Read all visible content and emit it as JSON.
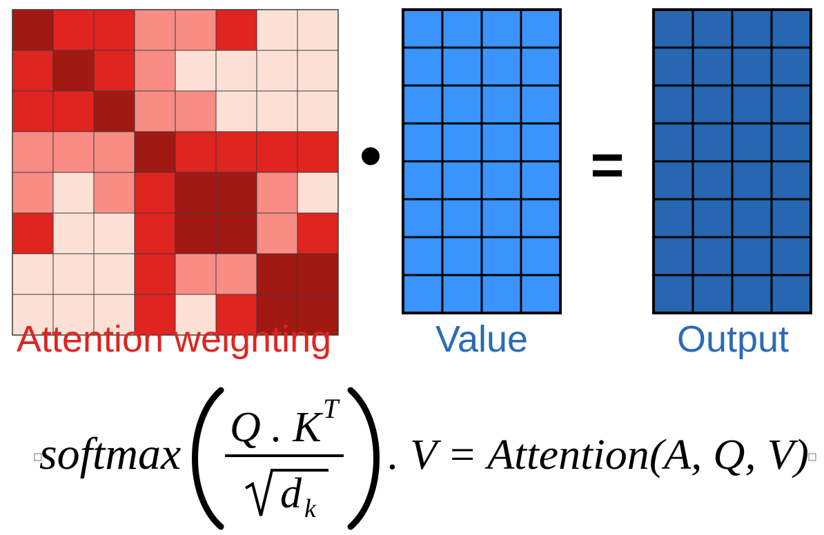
{
  "attention": {
    "label": "Attention weighting",
    "label_color": "#e02420",
    "levels": [
      [
        3,
        2,
        2,
        1,
        1,
        2,
        0,
        0
      ],
      [
        2,
        3,
        2,
        1,
        0,
        0,
        0,
        0
      ],
      [
        2,
        2,
        3,
        1,
        1,
        0,
        0,
        0
      ],
      [
        1,
        1,
        1,
        3,
        2,
        2,
        2,
        2
      ],
      [
        1,
        0,
        1,
        2,
        3,
        3,
        1,
        0
      ],
      [
        2,
        0,
        0,
        2,
        3,
        3,
        1,
        2
      ],
      [
        0,
        0,
        0,
        2,
        1,
        1,
        3,
        3
      ],
      [
        0,
        0,
        0,
        2,
        0,
        2,
        3,
        3
      ]
    ],
    "level_colors": [
      "#fce0d6",
      "#f98d86",
      "#e02420",
      "#a21914"
    ]
  },
  "operator_dot": "•",
  "value": {
    "label": "Value",
    "label_color": "#2a6bb6",
    "rows": 8,
    "cols": 4,
    "cell_color": "#3a94fc"
  },
  "operator_equals": "=",
  "output": {
    "label": "Output",
    "label_color": "#2a6bb6",
    "rows": 8,
    "cols": 4,
    "cell_color": "#2766b0"
  },
  "formula": {
    "softmax": "softmax",
    "numerator": "Q . K",
    "superscript": "T",
    "denominator_var": "d",
    "denominator_sub": "k",
    "right_side": ". V = Attention(A, Q, V)"
  }
}
